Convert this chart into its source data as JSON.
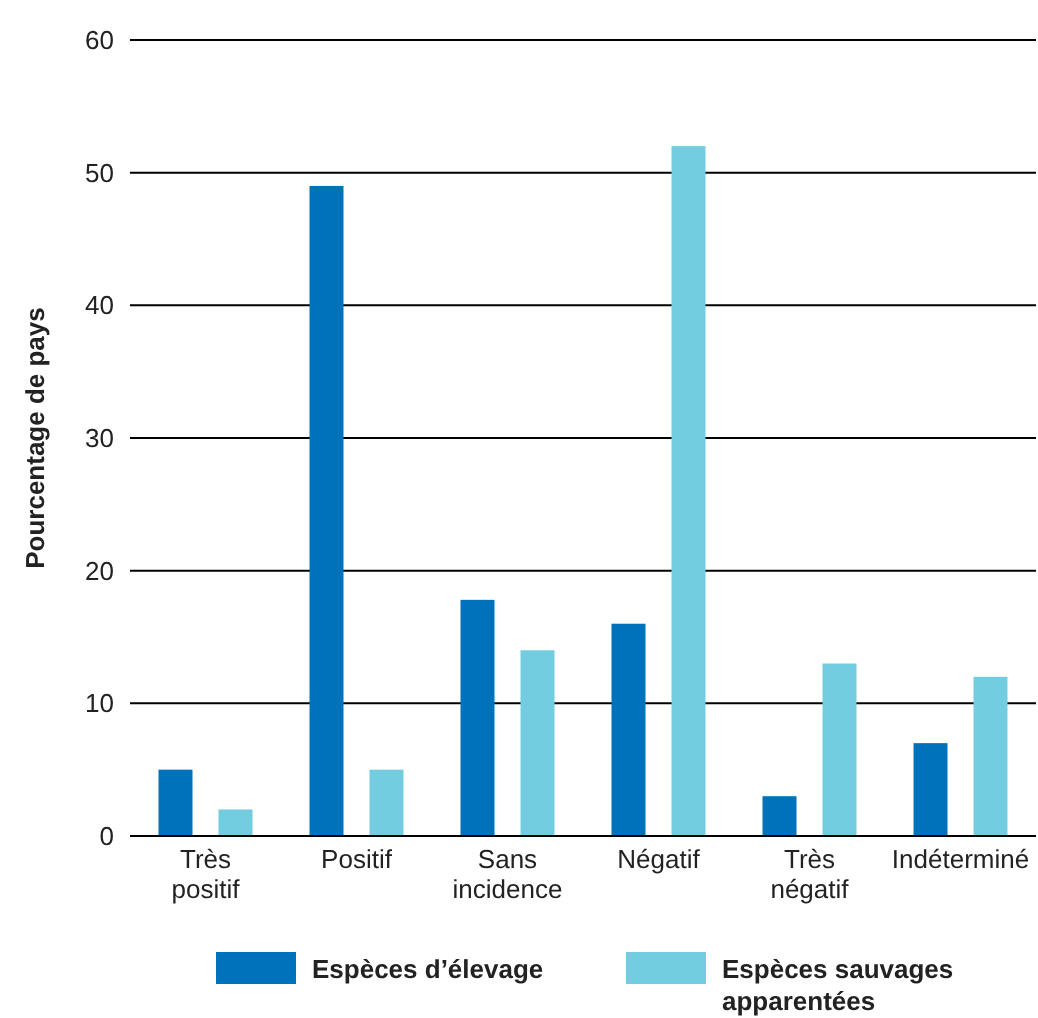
{
  "chart_data": {
    "type": "bar",
    "ylabel": "Pourcentage de pays",
    "categories": [
      "Très positif",
      "Positif",
      "Sans incidence",
      "Négatif",
      "Très négatif",
      "Indéterminé"
    ],
    "series": [
      {
        "name": "Espèces d’élevage",
        "color": "#0072bc",
        "values": [
          5,
          49,
          17.8,
          16,
          3,
          7
        ]
      },
      {
        "name": "Espèces sauvages apparentées",
        "color": "#72cde0",
        "values": [
          2,
          5,
          14,
          52,
          13,
          12
        ]
      }
    ],
    "ylim": [
      0,
      60
    ],
    "yticks": [
      0,
      10,
      20,
      30,
      40,
      50,
      60
    ],
    "grid": "y",
    "legend": "bottom"
  }
}
